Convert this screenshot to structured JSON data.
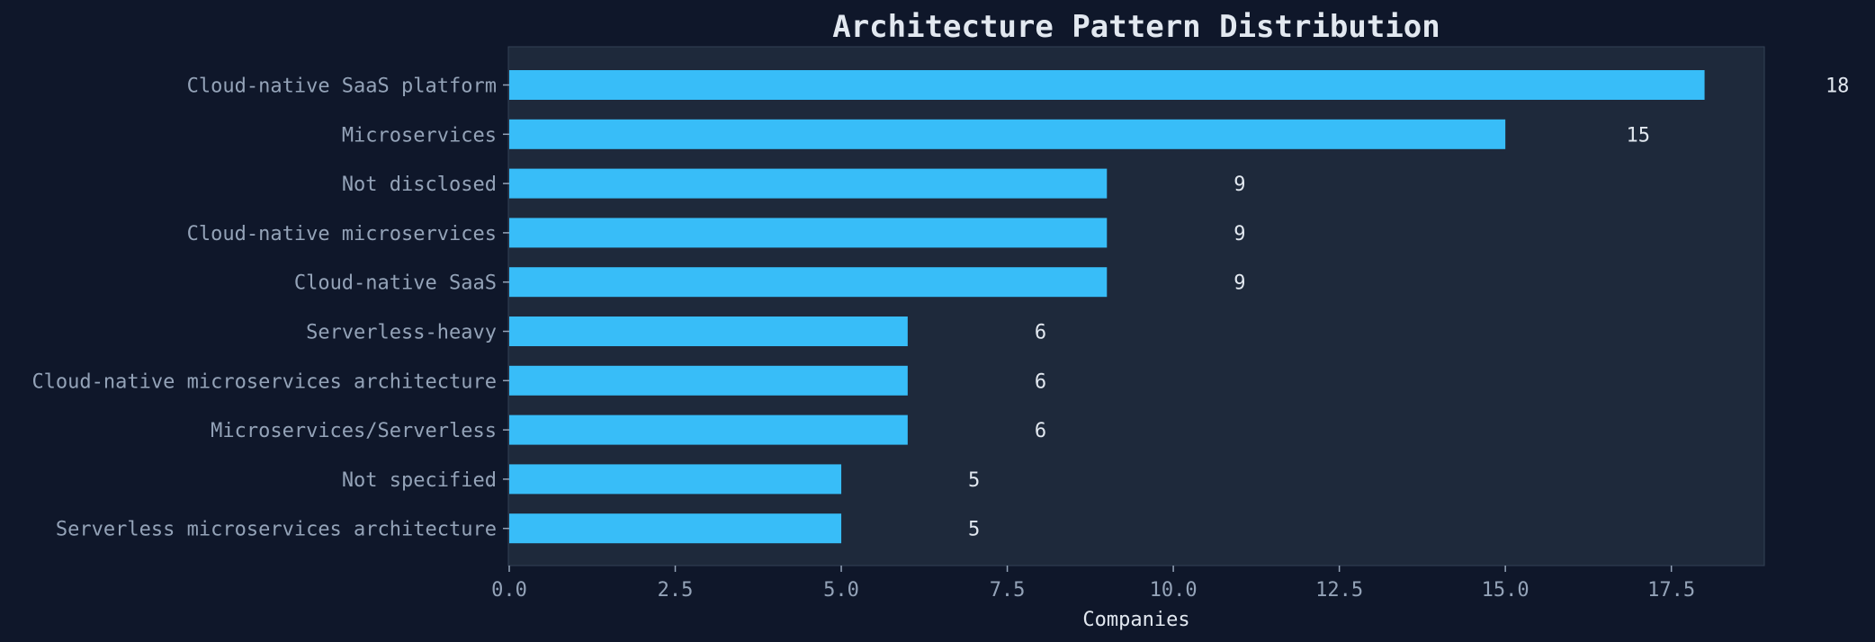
{
  "chart_data": {
    "type": "bar",
    "orientation": "horizontal",
    "title": "Architecture Pattern Distribution",
    "xlabel": "Companies",
    "ylabel": "",
    "categories": [
      "Cloud-native SaaS platform",
      "Microservices",
      "Not disclosed",
      "Cloud-native microservices",
      "Cloud-native SaaS",
      "Serverless-heavy",
      "Cloud-native microservices architecture",
      "Microservices/Serverless",
      "Not specified",
      "Serverless microservices architecture"
    ],
    "values": [
      18,
      15,
      9,
      9,
      9,
      6,
      6,
      6,
      5,
      5
    ],
    "xlim": [
      0,
      18.9
    ],
    "xticks": [
      "0.0",
      "2.5",
      "5.0",
      "7.5",
      "10.0",
      "12.5",
      "15.0",
      "17.5"
    ],
    "grid": false,
    "colors": {
      "background": "#0f172a",
      "plot_background": "#1e293b",
      "bar": "#38bdf8",
      "text": "#e2e8f0",
      "tick_text": "#94a3b8"
    }
  }
}
